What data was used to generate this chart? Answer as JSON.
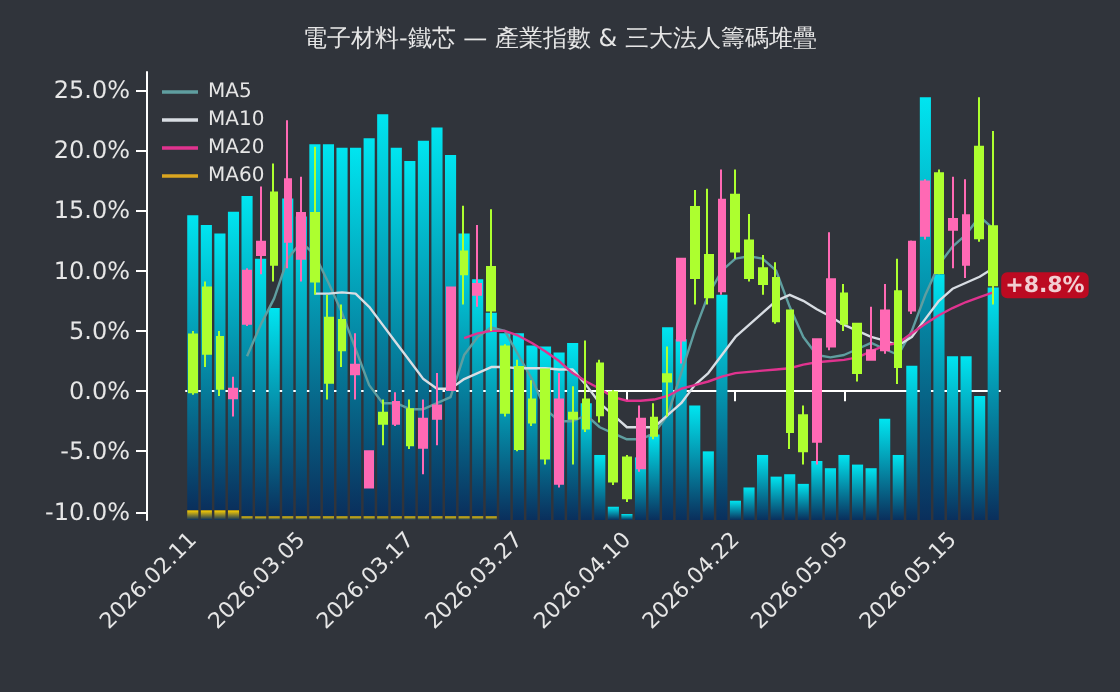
{
  "chart_data": {
    "type": "candlestick",
    "title": "電子材料-鐵芯 — 產業指數 & 三大法人籌碼堆疊",
    "categories": [
      "2026.02.11",
      null,
      null,
      null,
      null,
      null,
      null,
      null,
      "2026.03.05",
      null,
      null,
      null,
      null,
      null,
      null,
      null,
      "2026.03.17",
      null,
      null,
      null,
      null,
      null,
      null,
      null,
      "2026.03.27",
      null,
      null,
      null,
      null,
      null,
      null,
      null,
      "2026.04.10",
      null,
      null,
      null,
      null,
      null,
      null,
      null,
      "2026.04.22",
      null,
      null,
      null,
      null,
      null,
      null,
      null,
      "2026.05.05",
      null,
      null,
      null,
      null,
      null,
      null,
      null,
      "2026.05.15",
      null,
      null,
      null
    ],
    "ohlc": [
      [
        4.7,
        5.0,
        -0.3,
        -0.1
      ],
      [
        8.6,
        9.1,
        2.0,
        3.1
      ],
      [
        4.5,
        5.0,
        -0.4,
        0.2
      ],
      [
        -0.6,
        1.2,
        -2.1,
        0.2
      ],
      [
        5.6,
        10.2,
        5.4,
        10.0
      ],
      [
        11.3,
        17.0,
        9.7,
        12.4
      ],
      [
        16.5,
        18.9,
        9.1,
        10.5
      ],
      [
        12.4,
        22.5,
        10.2,
        17.6
      ],
      [
        11.0,
        17.8,
        9.1,
        14.8
      ],
      [
        14.8,
        20.3,
        8.0,
        9.1
      ],
      [
        6.1,
        8.0,
        -0.7,
        0.7
      ],
      [
        5.9,
        7.2,
        2.0,
        3.4
      ],
      [
        1.4,
        4.8,
        -0.7,
        2.2
      ],
      [
        -8.0,
        -5.0,
        -8.0,
        -5.0
      ],
      [
        -1.8,
        -0.7,
        -4.5,
        -2.7
      ],
      [
        -2.7,
        -0.1,
        -2.9,
        -0.9
      ],
      [
        -1.5,
        -0.7,
        -4.8,
        -4.5
      ],
      [
        -4.7,
        -0.7,
        -6.9,
        -2.3
      ],
      [
        -2.3,
        1.5,
        -4.5,
        -1.2
      ],
      [
        0.1,
        8.6,
        0.1,
        8.6
      ],
      [
        11.6,
        15.4,
        7.2,
        9.7
      ],
      [
        8.0,
        13.8,
        7.0,
        8.9
      ],
      [
        10.3,
        15.1,
        5.0,
        6.7
      ],
      [
        3.7,
        3.9,
        -2.1,
        -1.8
      ],
      [
        2.0,
        2.6,
        -5.0,
        -4.8
      ],
      [
        -0.7,
        0.9,
        -2.9,
        -2.6
      ],
      [
        1.8,
        1.8,
        -6.1,
        -5.6
      ],
      [
        -7.7,
        1.5,
        -8.0,
        -0.7
      ],
      [
        -1.8,
        0.4,
        -6.1,
        -2.3
      ],
      [
        -0.7,
        4.2,
        -3.4,
        -3.1
      ],
      [
        2.3,
        2.6,
        -2.6,
        -2.0
      ],
      [
        -0.1,
        0.1,
        -7.8,
        -7.5
      ],
      [
        -5.5,
        -5.3,
        -9.2,
        -8.9
      ],
      [
        -6.4,
        -1.2,
        -6.7,
        -2.3
      ],
      [
        -2.2,
        -1.0,
        -4.0,
        -3.7
      ],
      [
        1.4,
        3.7,
        -2.1,
        0.8
      ],
      [
        4.2,
        11.0,
        2.3,
        11.0
      ],
      [
        15.3,
        16.7,
        7.2,
        9.4
      ],
      [
        11.3,
        16.8,
        7.2,
        7.8
      ],
      [
        8.3,
        18.4,
        8.0,
        15.9
      ],
      [
        16.3,
        18.4,
        11.0,
        11.6
      ],
      [
        12.5,
        14.7,
        9.1,
        9.4
      ],
      [
        10.2,
        11.3,
        8.0,
        8.9
      ],
      [
        9.4,
        10.7,
        5.6,
        5.8
      ],
      [
        6.7,
        6.7,
        -4.8,
        -3.4
      ],
      [
        -2.0,
        -1.2,
        -6.1,
        -5.0
      ],
      [
        -4.2,
        4.3,
        -6.1,
        4.3
      ],
      [
        3.7,
        13.2,
        3.4,
        9.3
      ],
      [
        8.1,
        8.9,
        5.0,
        5.6
      ],
      [
        5.6,
        5.6,
        0.8,
        1.5
      ],
      [
        2.6,
        7.0,
        2.6,
        3.4
      ],
      [
        3.4,
        8.9,
        3.1,
        6.7
      ],
      [
        8.3,
        11.0,
        0.6,
        2.0
      ],
      [
        6.7,
        12.5,
        6.4,
        12.4
      ],
      [
        12.9,
        17.6,
        12.6,
        17.4
      ],
      [
        18.1,
        18.4,
        9.7,
        9.8
      ],
      [
        13.4,
        17.8,
        10.2,
        14.3
      ],
      [
        10.5,
        17.6,
        9.4,
        14.6
      ],
      [
        20.3,
        24.4,
        12.4,
        12.7
      ],
      [
        13.7,
        21.6,
        7.2,
        8.8
      ]
    ],
    "colors": [
      "#adff2f",
      "#adff2f",
      "#adff2f",
      "#ff69b4",
      "#ff69b4",
      "#ff69b4",
      "#adff2f",
      "#ff69b4",
      "#ff69b4",
      "#adff2f",
      "#adff2f",
      "#adff2f",
      "#ff69b4",
      "#ff69b4",
      "#adff2f",
      "#ff69b4",
      "#adff2f",
      "#ff69b4",
      "#ff69b4",
      "#ff69b4",
      "#adff2f",
      "#ff69b4",
      "#adff2f",
      "#adff2f",
      "#adff2f",
      "#adff2f",
      "#adff2f",
      "#ff69b4",
      "#adff2f",
      "#adff2f",
      "#adff2f",
      "#adff2f",
      "#adff2f",
      "#ff69b4",
      "#adff2f",
      "#adff2f",
      "#ff69b4",
      "#adff2f",
      "#adff2f",
      "#ff69b4",
      "#adff2f",
      "#adff2f",
      "#adff2f",
      "#adff2f",
      "#adff2f",
      "#adff2f",
      "#ff69b4",
      "#ff69b4",
      "#adff2f",
      "#adff2f",
      "#ff69b4",
      "#ff69b4",
      "#adff2f",
      "#ff69b4",
      "#ff69b4",
      "#adff2f",
      "#ff69b4",
      "#ff69b4",
      "#adff2f",
      "#adff2f"
    ],
    "series": [
      {
        "type": "bar",
        "color": "#ffd000",
        "base": [
          -10.7,
          -10.7,
          -10.7,
          -10.7,
          -10.7,
          -10.7,
          -10.7,
          -10.7,
          -10.7,
          -10.7,
          -10.7,
          -10.7,
          -10.7,
          -10.7,
          -10.7,
          -10.7,
          -10.7,
          -10.7,
          -10.7,
          -10.7,
          -10.7,
          -10.7,
          -10.7,
          null,
          null,
          null,
          null,
          null,
          null,
          null,
          null,
          null,
          null,
          null,
          null,
          null,
          null,
          null,
          null,
          null,
          null,
          null,
          null,
          null,
          null,
          null,
          null,
          null,
          null,
          null,
          null,
          null,
          null,
          null,
          null,
          null,
          null,
          null,
          null,
          null
        ],
        "values": [
          0.8,
          0.8,
          0.8,
          0.8,
          0.3,
          0.3,
          0.3,
          0.3,
          0.3,
          0.3,
          0.3,
          0.3,
          0.3,
          0.3,
          0.3,
          0.3,
          0.3,
          0.3,
          0.3,
          0.3,
          0.3,
          0.3,
          0.3,
          null,
          null,
          null,
          null,
          null,
          null,
          null,
          null,
          null,
          null,
          null,
          null,
          null,
          null,
          null,
          null,
          null,
          null,
          null,
          null,
          null,
          null,
          null,
          null,
          null,
          null,
          null,
          null,
          null,
          null,
          null,
          null,
          null,
          null,
          null,
          null,
          null
        ]
      },
      {
        "type": "bar",
        "color": "#00e5f0",
        "base": [
          -9.9,
          -9.9,
          -9.9,
          -9.9,
          -10.4,
          -10.4,
          -10.4,
          -10.4,
          -10.4,
          -10.4,
          -10.4,
          -10.4,
          -10.4,
          -10.4,
          -10.4,
          -10.4,
          -10.4,
          -10.4,
          -10.4,
          -10.4,
          -10.4,
          -10.4,
          -10.4,
          -10.7,
          -10.7,
          -10.7,
          -10.7,
          -10.7,
          -10.7,
          -10.7,
          -10.7,
          -10.7,
          -10.7,
          -10.7,
          -10.7,
          -10.7,
          -10.7,
          -10.7,
          -10.7,
          -10.7,
          -10.7,
          -10.7,
          -10.7,
          -10.7,
          -10.7,
          -10.7,
          -10.7,
          -10.7,
          -10.7,
          -10.7,
          -10.7,
          -10.7,
          -10.7,
          -10.7,
          -10.7,
          -10.7,
          -10.7,
          -10.7,
          -10.7,
          -10.7
        ],
        "values": [
          24.5,
          23.7,
          23.0,
          24.8,
          26.6,
          21.4,
          17.3,
          26.4,
          24.9,
          30.9,
          30.9,
          30.6,
          30.6,
          31.4,
          33.4,
          30.6,
          29.5,
          31.2,
          32.3,
          30.0,
          23.5,
          19.7,
          16.9,
          15.5,
          15.5,
          14.5,
          14.4,
          13.9,
          14.7,
          9.7,
          5.4,
          1.1,
          0.5,
          5.2,
          7.1,
          16.0,
          15.0,
          9.5,
          5.7,
          18.7,
          1.6,
          2.7,
          5.4,
          3.6,
          3.8,
          3.0,
          4.9,
          4.3,
          5.4,
          4.6,
          4.3,
          8.4,
          5.4,
          12.8,
          35.1,
          20.4,
          13.6,
          13.6,
          10.3,
          19.3
        ]
      },
      {
        "type": "line",
        "name": "MA5",
        "color": "#5f9ea0",
        "values": [
          null,
          null,
          null,
          null,
          2.9,
          5.5,
          7.7,
          11.0,
          12.4,
          11.3,
          9.0,
          6.5,
          3.5,
          0.5,
          -1.0,
          -1.0,
          -1.5,
          -1.5,
          -1.0,
          -0.5,
          3.0,
          4.5,
          5.3,
          5.0,
          3.0,
          1.0,
          -1.5,
          -2.5,
          -2.5,
          -2.0,
          -3.0,
          -3.5,
          -4.0,
          -4.0,
          -3.5,
          -2.0,
          1.5,
          5.0,
          8.0,
          10.0,
          11.0,
          11.2,
          11.0,
          10.0,
          7.0,
          4.5,
          3.0,
          2.8,
          3.0,
          3.5,
          4.0,
          3.5,
          3.0,
          5.0,
          8.0,
          10.5,
          12.0,
          13.0,
          14.5,
          13.5
        ]
      },
      {
        "type": "line",
        "name": "MA10",
        "color": "#d8dde3",
        "values": [
          null,
          null,
          null,
          null,
          null,
          null,
          null,
          null,
          null,
          8.1,
          8.1,
          8.2,
          8.1,
          7.0,
          5.5,
          4.0,
          2.5,
          1.0,
          0.2,
          0.2,
          1.0,
          1.5,
          2.0,
          2.0,
          1.9,
          1.9,
          1.9,
          1.8,
          1.8,
          0.5,
          -1.0,
          -2.0,
          -3.0,
          -3.0,
          -3.0,
          -2.0,
          -1.0,
          0.5,
          1.5,
          3.0,
          4.5,
          5.5,
          6.5,
          7.5,
          8.0,
          7.5,
          6.8,
          6.2,
          5.5,
          5.0,
          4.5,
          4.2,
          3.8,
          4.5,
          6.0,
          7.5,
          8.5,
          9.0,
          9.5,
          10.2
        ]
      },
      {
        "type": "line",
        "name": "MA20",
        "color": "#e0338f",
        "values": [
          null,
          null,
          null,
          null,
          null,
          null,
          null,
          null,
          null,
          null,
          null,
          null,
          null,
          null,
          null,
          null,
          null,
          null,
          null,
          null,
          4.4,
          4.8,
          5.0,
          5.0,
          4.6,
          4.0,
          3.3,
          2.5,
          1.5,
          0.8,
          0.2,
          -0.5,
          -0.8,
          -0.8,
          -0.7,
          -0.4,
          0.2,
          0.5,
          0.8,
          1.2,
          1.5,
          1.6,
          1.7,
          1.8,
          1.9,
          2.2,
          2.4,
          2.5,
          2.6,
          2.8,
          3.3,
          3.8,
          4.0,
          4.8,
          5.6,
          6.3,
          6.9,
          7.4,
          7.8,
          8.2
        ]
      },
      {
        "type": "line",
        "name": "MA60",
        "color": "#daa520",
        "values": [
          null,
          null,
          null,
          null,
          null,
          null,
          null,
          null,
          null,
          null,
          null,
          null,
          null,
          null,
          null,
          null,
          null,
          null,
          null,
          null,
          null,
          null,
          null,
          null,
          null,
          null,
          null,
          null,
          null,
          null,
          null,
          null,
          null,
          null,
          null,
          null,
          null,
          null,
          null,
          null,
          null,
          null,
          null,
          null,
          null,
          null,
          null,
          null,
          null,
          null,
          null,
          null,
          null,
          null,
          null,
          null,
          null,
          null,
          null,
          null
        ]
      }
    ],
    "ylim": [
      -10.7,
      26.5
    ],
    "yticks": [
      {
        "value": -10,
        "label": "-10.0%"
      },
      {
        "value": -5,
        "label": "-5.0%"
      },
      {
        "value": 0,
        "label": "0.0%"
      },
      {
        "value": 5,
        "label": "5.0%"
      },
      {
        "value": 10,
        "label": "10.0%"
      },
      {
        "value": 15,
        "label": "15.0%"
      },
      {
        "value": 20,
        "label": "20.0%"
      },
      {
        "value": 25,
        "label": "25.0%"
      }
    ],
    "annotations": [
      "+8.8%"
    ],
    "legend": "top left",
    "marker": "none"
  }
}
